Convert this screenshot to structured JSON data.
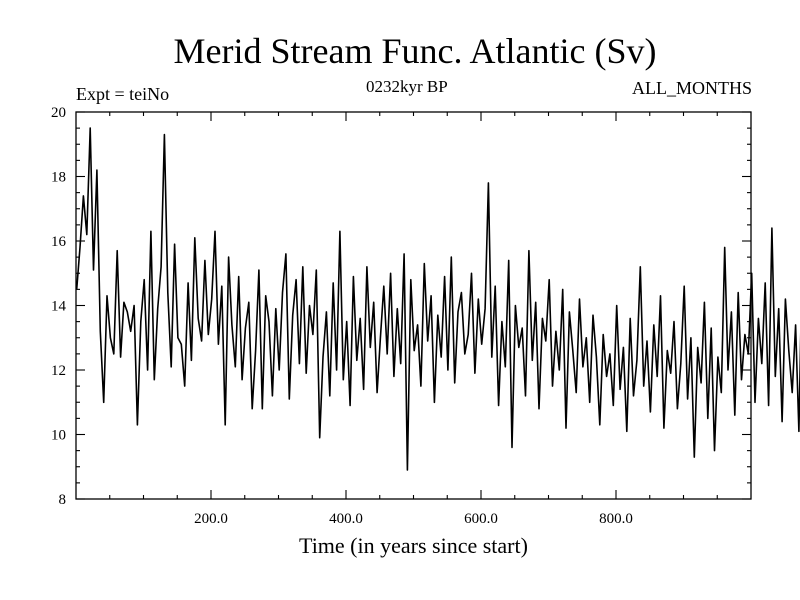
{
  "chart_data": {
    "type": "line",
    "title": "Merid Stream Func. Atlantic (Sv)",
    "subtitle": "0232kyr BP",
    "left_label": "Expt = teiNo",
    "right_label": "ALL_MONTHS",
    "xlabel": "Time (in years since start)",
    "ylabel": "",
    "xlim": [
      0,
      1000
    ],
    "ylim": [
      8,
      20
    ],
    "x_ticks": [
      200,
      400,
      600,
      800
    ],
    "x_tick_labels": [
      "200.0",
      "400.0",
      "600.0",
      "800.0"
    ],
    "y_ticks": [
      8,
      10,
      12,
      14,
      16,
      18,
      20
    ],
    "y_tick_labels": [
      "8",
      "10",
      "12",
      "14",
      "16",
      "18",
      "20"
    ],
    "series": [
      {
        "name": "Merid Stream Func. Atlantic",
        "x_start": 1,
        "x_step": 5,
        "values": [
          14.5,
          15.8,
          17.4,
          16.2,
          19.5,
          15.1,
          18.2,
          13.2,
          11.0,
          14.3,
          13.0,
          12.5,
          15.7,
          12.4,
          14.1,
          13.8,
          13.2,
          14.0,
          10.3,
          13.5,
          14.8,
          12.0,
          16.3,
          11.7,
          13.9,
          15.2,
          19.3,
          14.4,
          12.1,
          15.9,
          13.0,
          12.8,
          11.5,
          14.7,
          12.3,
          16.1,
          13.6,
          12.9,
          15.4,
          13.1,
          14.2,
          16.3,
          12.8,
          14.6,
          10.3,
          15.5,
          13.4,
          12.1,
          14.9,
          11.7,
          13.3,
          14.1,
          10.8,
          12.6,
          15.1,
          10.8,
          14.3,
          13.5,
          11.2,
          13.9,
          12.0,
          14.4,
          15.6,
          11.1,
          13.7,
          14.8,
          12.2,
          15.2,
          11.9,
          14.0,
          13.1,
          15.1,
          9.9,
          12.4,
          13.8,
          11.2,
          14.7,
          12.0,
          16.3,
          11.7,
          13.5,
          10.9,
          14.9,
          12.3,
          13.6,
          11.4,
          15.2,
          12.7,
          14.1,
          11.3,
          13.0,
          14.6,
          12.5,
          15.0,
          11.8,
          13.9,
          12.2,
          15.6,
          8.9,
          14.8,
          12.6,
          13.4,
          11.5,
          15.3,
          12.9,
          14.3,
          11.0,
          13.7,
          12.4,
          14.9,
          12.0,
          15.5,
          11.6,
          13.8,
          14.4,
          12.5,
          13.1,
          15.0,
          11.9,
          14.2,
          12.8,
          13.9,
          17.8,
          12.4,
          14.6,
          10.9,
          13.5,
          12.1,
          15.4,
          9.6,
          14.0,
          12.7,
          13.3,
          11.2,
          15.7,
          12.3,
          14.1,
          10.8,
          13.6,
          12.9,
          14.8,
          11.5,
          13.2,
          12.0,
          14.5,
          10.2,
          13.8,
          12.6,
          11.3,
          14.2,
          12.1,
          13.0,
          11.0,
          13.7,
          12.4,
          10.3,
          13.1,
          11.8,
          12.5,
          10.9,
          14.0,
          11.4,
          12.7,
          10.1,
          13.6,
          11.2,
          12.3,
          15.2,
          11.5,
          12.9,
          10.7,
          13.4,
          11.8,
          14.3,
          10.2,
          12.6,
          11.9,
          13.5,
          10.8,
          12.2,
          14.6,
          11.1,
          13.0,
          9.3,
          12.7,
          11.6,
          14.1,
          10.5,
          13.3,
          9.5,
          12.4,
          11.3,
          15.8,
          12.0,
          13.8,
          10.6,
          14.4,
          11.7,
          13.1,
          12.5,
          15.0,
          11.0,
          13.6,
          12.2,
          14.7,
          10.9,
          16.4,
          11.8,
          13.9,
          10.4,
          14.2,
          12.6,
          11.3,
          13.4,
          10.1,
          15.6,
          12.0,
          13.2,
          11.1,
          14.8,
          12.4,
          15.1,
          10.7,
          13.7,
          12.1,
          14.0,
          11.4,
          12.8,
          10.2,
          13.3,
          11.6,
          12.4,
          10.9,
          14.5,
          11.2,
          12.7,
          10.6,
          13.9,
          11.8,
          12.3,
          10.4,
          13.1,
          11.5,
          14.6,
          10.8,
          12.9,
          11.0,
          13.6,
          10.3,
          12.5,
          11.7,
          14.2,
          10.6,
          12.1,
          11.3,
          13.4,
          10.0,
          12.8,
          11.5,
          13.8,
          10.7,
          12.2,
          11.9,
          14.0,
          10.5,
          9.6,
          12.6,
          11.2,
          13.5,
          10.9,
          12.0,
          8.7,
          13.3,
          11.4,
          12.7,
          10.2,
          14.1,
          11.8,
          12.4,
          11.0,
          13.6,
          10.6,
          12.3,
          9.8,
          13.0,
          8.9,
          12.5,
          11.3,
          14.4,
          12.0,
          13.7,
          11.6,
          14.9,
          12.8,
          15.3,
          11.1,
          13.9,
          14.7,
          15.8,
          12.3,
          13.5,
          15.1,
          11.8,
          12.9,
          14.2,
          10.8,
          11.6,
          13.1,
          10.5,
          12.4,
          11.2,
          14.3,
          10.9,
          12.0,
          11.5,
          13.2,
          10.7,
          12.6,
          14.5,
          11.3,
          13.8,
          10.4,
          12.7,
          11.9,
          14.1,
          10.2,
          12.8,
          11.4,
          13.6,
          14.9,
          11.7,
          10.5,
          13.4,
          15.0,
          11.1,
          12.3,
          10.3,
          11.8,
          14.6,
          10.8
        ]
      }
    ]
  }
}
